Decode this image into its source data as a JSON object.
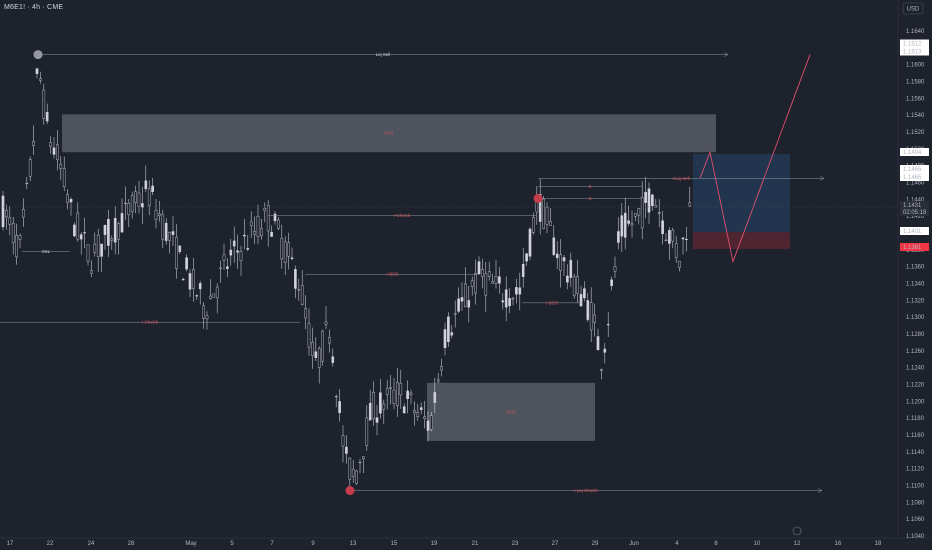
{
  "header": {
    "title": "M6E1! · 4h · CME",
    "currency": "USD"
  },
  "price_axis": {
    "ticks": [
      "1.1640",
      "1.1620",
      "1.1600",
      "1.1580",
      "1.1560",
      "1.1540",
      "1.1520",
      "1.1500",
      "1.1480",
      "1.1460",
      "1.1440",
      "1.1420",
      "1.1400",
      "1.1380",
      "1.1360",
      "1.1340",
      "1.1320",
      "1.1300",
      "1.1280",
      "1.1260",
      "1.1240",
      "1.1220",
      "1.1200",
      "1.1180",
      "1.1160",
      "1.1140",
      "1.1120",
      "1.1100",
      "1.1080",
      "1.1060",
      "1.1040"
    ],
    "badges": [
      {
        "text": "1.1612",
        "bg": "#ffffff",
        "fg": "#131722"
      },
      {
        "text": "1.1613",
        "bg": "#ffffff",
        "fg": "#131722"
      },
      {
        "text": "1.1494",
        "bg": "#ffffff",
        "fg": "#131722"
      },
      {
        "text": "1.1465",
        "bg": "#ffffff",
        "fg": "#131722"
      },
      {
        "text": "1.1465",
        "bg": "#ffffff",
        "fg": "#131722"
      },
      {
        "text": "1.1431",
        "bg": "#2a2e39",
        "fg": "#d1d4dc"
      },
      {
        "text": "02:05:18",
        "bg": "#2a2e39",
        "fg": "#d1d4dc"
      },
      {
        "text": "1.1401",
        "bg": "#ffffff",
        "fg": "#131722"
      },
      {
        "text": "1.1381",
        "bg": "#f23645",
        "fg": "#ffffff"
      }
    ]
  },
  "time_axis": {
    "ticks": [
      "17",
      "22",
      "24",
      "28",
      "May",
      "5",
      "7",
      "9",
      "13",
      "15",
      "19",
      "21",
      "23",
      "27",
      "29",
      "Jun",
      "4",
      "6",
      "10",
      "12",
      "16",
      "18"
    ]
  },
  "annotations": {
    "liq_sell_top": "Liq Sell",
    "ssl": "SSL",
    "i_choch_mid": "I-ChoCh",
    "i_bos_left": "I-BOS",
    "i_choch_left": "I-ChoCh",
    "i_bos_right": "I-BOS",
    "fvg_top": "FVG",
    "fvg_bottom": "FVG",
    "liq_choch_bottom": "I-Liq ChoCh",
    "liq_sell_right": "I-Liq Sell",
    "s_upper": "S",
    "s_lower": "S"
  },
  "colors": {
    "background": "#1e222d",
    "up": "#d1d4dc",
    "down": "#d1d4dc",
    "label_red": "#e05a5a",
    "projection": "#e0506e",
    "grid": "#2a2e39"
  },
  "chart_data": {
    "type": "candlestick",
    "symbol": "M6E1!",
    "timeframe": "4h",
    "exchange": "CME",
    "ylim": [
      1.104,
      1.165
    ],
    "x_ticks": [
      "17",
      "22",
      "24",
      "28",
      "May",
      "5",
      "7",
      "9",
      "13",
      "15",
      "19",
      "21",
      "23",
      "27",
      "29",
      "Jun",
      "4",
      "6",
      "10",
      "12",
      "16",
      "18"
    ],
    "levels": [
      {
        "label": "Liq Sell",
        "price": 1.1612
      },
      {
        "label": "I-ChoCh",
        "price": 1.1421
      },
      {
        "label": "I-BOS",
        "price": 1.1351
      },
      {
        "label": "I-ChoCh",
        "price": 1.1294
      },
      {
        "label": "I-BOS",
        "price": 1.1317
      },
      {
        "label": "I-Liq ChoCh",
        "price": 1.1094
      },
      {
        "label": "I-Liq Sell",
        "price": 1.1465
      }
    ],
    "zones": [
      {
        "label": "FVG",
        "top": 1.1541,
        "bottom": 1.1496
      },
      {
        "label": "FVG",
        "top": 1.1222,
        "bottom": 1.1153
      }
    ],
    "position": {
      "entry": 1.1401,
      "target": 1.1494,
      "stop": 1.1381
    },
    "last_price": 1.1431,
    "countdown": "02:05:18"
  }
}
